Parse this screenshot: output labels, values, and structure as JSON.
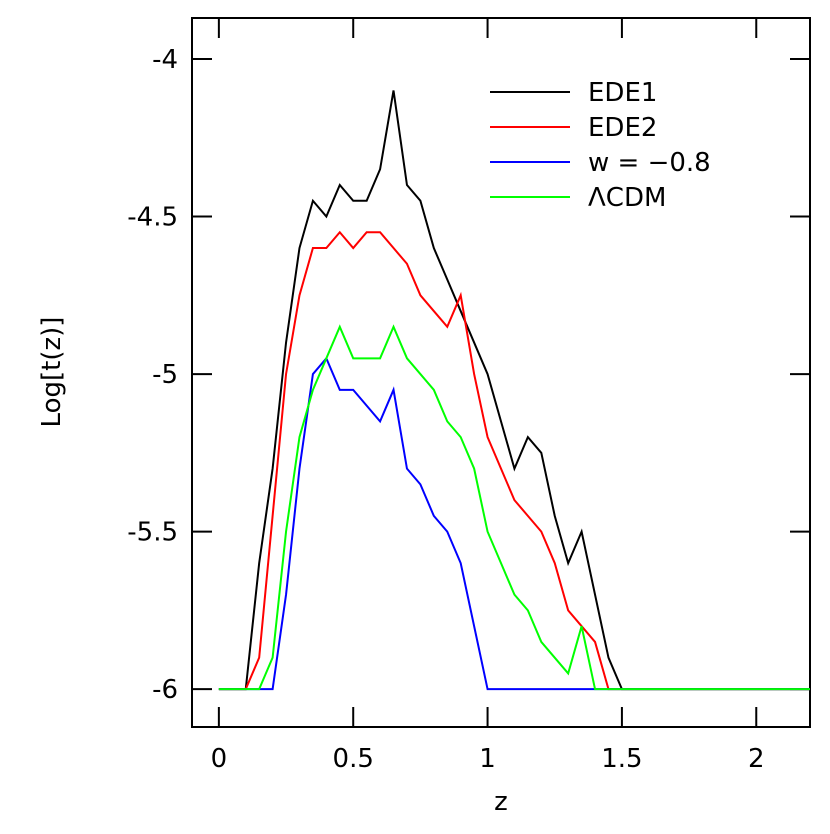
{
  "chart_data": {
    "type": "line",
    "xlabel": "z",
    "ylabel": "Log[t(z)]",
    "x": [
      0,
      0.05,
      0.1,
      0.15,
      0.2,
      0.25,
      0.3,
      0.35,
      0.4,
      0.45,
      0.5,
      0.55,
      0.6,
      0.65,
      0.7,
      0.75,
      0.8,
      0.85,
      0.9,
      0.95,
      1,
      1.05,
      1.1,
      1.15,
      1.2,
      1.25,
      1.3,
      1.35,
      1.4,
      1.45,
      1.5,
      1.55,
      1.6,
      1.65,
      1.7,
      1.75,
      1.8,
      1.85,
      1.9,
      1.95,
      2,
      2.05,
      2.1,
      2.15,
      2.2
    ],
    "series": [
      {
        "name": "EDE1",
        "color": "#000000",
        "values": [
          -6,
          -6,
          -6,
          -5.6,
          -5.3,
          -4.9,
          -4.6,
          -4.45,
          -4.5,
          -4.4,
          -4.45,
          -4.45,
          -4.35,
          -4.1,
          -4.4,
          -4.45,
          -4.6,
          -4.7,
          -4.8,
          -4.9,
          -5.0,
          -5.15,
          -5.3,
          -5.2,
          -5.25,
          -5.45,
          -5.6,
          -5.5,
          -5.7,
          -5.9,
          -6,
          -6,
          -6,
          -6,
          -6,
          -6,
          -6,
          -6,
          -6,
          -6,
          -6,
          -6,
          -6,
          -6,
          -6
        ]
      },
      {
        "name": "EDE2",
        "color": "#ff0000",
        "values": [
          -6,
          -6,
          -6,
          -5.9,
          -5.45,
          -5.0,
          -4.75,
          -4.6,
          -4.6,
          -4.55,
          -4.6,
          -4.55,
          -4.55,
          -4.6,
          -4.65,
          -4.75,
          -4.8,
          -4.85,
          -4.75,
          -5.0,
          -5.2,
          -5.3,
          -5.4,
          -5.45,
          -5.5,
          -5.6,
          -5.75,
          -5.8,
          -5.85,
          -6,
          -6,
          -6,
          -6,
          -6,
          -6,
          -6,
          -6,
          -6,
          -6,
          -6,
          -6,
          -6,
          -6,
          -6,
          -6
        ]
      },
      {
        "name": "w = −0.8",
        "color": "#0000ff",
        "values": [
          -6,
          -6,
          -6,
          -6,
          -6,
          -5.7,
          -5.3,
          -5.0,
          -4.95,
          -5.05,
          -5.05,
          -5.1,
          -5.15,
          -5.05,
          -5.3,
          -5.35,
          -5.45,
          -5.5,
          -5.6,
          -5.8,
          -6,
          -6,
          -6,
          -6,
          -6,
          -6,
          -6,
          -6,
          -6,
          -6,
          -6,
          -6,
          -6,
          -6,
          -6,
          -6,
          -6,
          -6,
          -6,
          -6,
          -6,
          -6,
          -6,
          -6,
          -6
        ]
      },
      {
        "name": "ΛCDM",
        "color": "#00ff00",
        "values": [
          -6,
          -6,
          -6,
          -6,
          -5.9,
          -5.5,
          -5.2,
          -5.05,
          -4.95,
          -4.85,
          -4.95,
          -4.95,
          -4.95,
          -4.85,
          -4.95,
          -5.0,
          -5.05,
          -5.15,
          -5.2,
          -5.3,
          -5.5,
          -5.6,
          -5.7,
          -5.75,
          -5.85,
          -5.9,
          -5.95,
          -5.8,
          -6,
          -6,
          -6,
          -6,
          -6,
          -6,
          -6,
          -6,
          -6,
          -6,
          -6,
          -6,
          -6,
          -6,
          -6,
          -6,
          -6
        ]
      }
    ],
    "xlim": [
      -0.1,
      2.2
    ],
    "ylim": [
      -6.12,
      -3.87
    ],
    "xticks": [
      0,
      0.5,
      1,
      1.5,
      2
    ],
    "yticks": [
      -6,
      -5.5,
      -5,
      -4.5,
      -4
    ],
    "legend": "upper right"
  }
}
